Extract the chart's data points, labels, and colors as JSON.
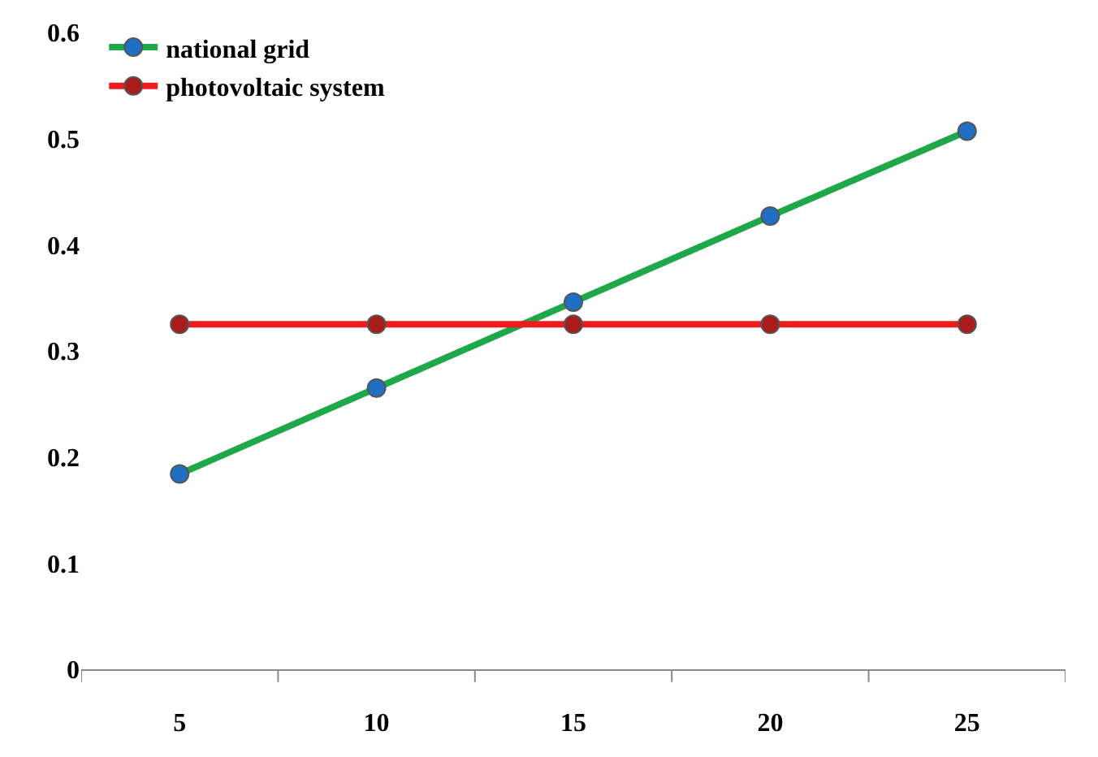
{
  "chart_data": {
    "type": "line",
    "categories": [
      "5",
      "10",
      "15",
      "20",
      "25"
    ],
    "series": [
      {
        "name": "national grid",
        "color": "#1fa84a",
        "colors": [
          "#1f6fc4",
          "#1f6fc4",
          "#1f6fc4",
          "#1f6fc4",
          "#1f6fc4"
        ],
        "values": [
          0.184,
          0.265,
          0.346,
          0.427,
          0.507
        ]
      },
      {
        "name": "photovoltaic system",
        "color": "#ee1c1c",
        "colors": [
          "#a81c1c",
          "#a81c1c",
          "#a81c1c",
          "#a81c1c",
          "#a81c1c"
        ],
        "values": [
          0.325,
          0.325,
          0.325,
          0.325,
          0.325
        ]
      }
    ],
    "ylim": [
      0,
      0.6
    ],
    "yticks": [
      0,
      0.1,
      0.2,
      0.3,
      0.4,
      0.5,
      0.6
    ],
    "legend": "top left",
    "marker": "circle",
    "line_style": "solid"
  }
}
